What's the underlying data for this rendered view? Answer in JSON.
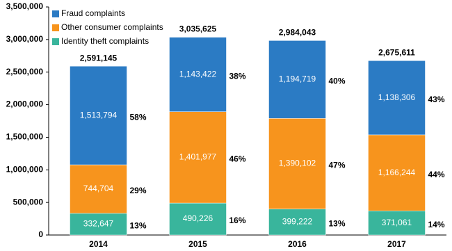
{
  "chart_data": {
    "type": "stacked_bar",
    "categories": [
      "2014",
      "2015",
      "2016",
      "2017"
    ],
    "series": [
      {
        "name": "Identity theft complaints",
        "color": "#39b59c",
        "values": [
          332647,
          490226,
          399222,
          371061
        ],
        "value_labels": [
          "332,647",
          "490,226",
          "399,222",
          "371,061"
        ],
        "share_labels": [
          "13%",
          "16%",
          "13%",
          "14%"
        ]
      },
      {
        "name": "Other consumer complaints",
        "color": "#f7941d",
        "values": [
          744704,
          1401977,
          1390102,
          1166244
        ],
        "value_labels": [
          "744,704",
          "1,401,977",
          "1,390,102",
          "1,166,244"
        ],
        "share_labels": [
          "29%",
          "46%",
          "47%",
          "44%"
        ]
      },
      {
        "name": "Fraud complaints",
        "color": "#2b7bc4",
        "values": [
          1513794,
          1143422,
          1194719,
          1138306
        ],
        "value_labels": [
          "1,513,794",
          "1,143,422",
          "1,194,719",
          "1,138,306"
        ],
        "share_labels": [
          "58%",
          "38%",
          "40%",
          "43%"
        ]
      }
    ],
    "totals": [
      2591145,
      3035625,
      2984043,
      2675611
    ],
    "total_labels": [
      "2,591,145",
      "3,035,625",
      "2,984,043",
      "2,675,611"
    ],
    "ylim": [
      0,
      3500000
    ],
    "yticks": [
      {
        "value": 0,
        "label": "0"
      },
      {
        "value": 500000,
        "label": "500,000"
      },
      {
        "value": 1000000,
        "label": "1,000,000"
      },
      {
        "value": 1500000,
        "label": "1,500,000"
      },
      {
        "value": 2000000,
        "label": "2,000,000"
      },
      {
        "value": 2500000,
        "label": "2,500,000"
      },
      {
        "value": 3000000,
        "label": "3,000,000"
      },
      {
        "value": 3500000,
        "label": "3,500,000"
      }
    ],
    "grid": false,
    "legend": "top-left"
  }
}
